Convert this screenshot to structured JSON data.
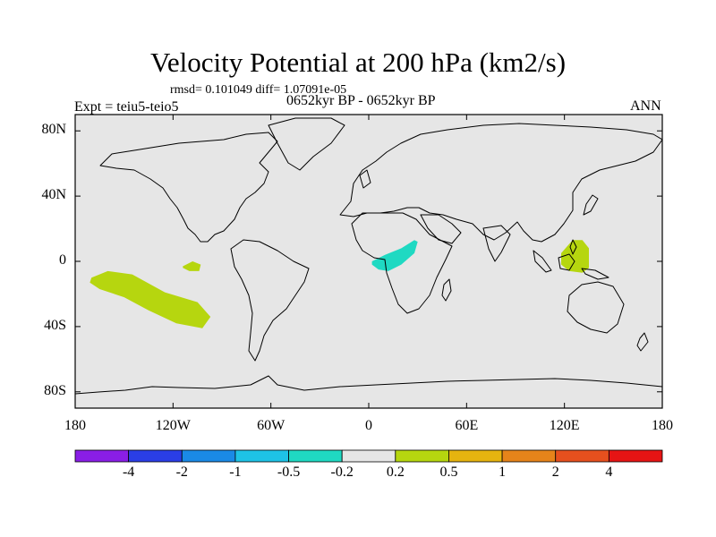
{
  "title": "Velocity Potential at 200 hPa (km2/s)",
  "stats": "rmsd= 0.101049 diff= 1.07091e-05",
  "left_label": "Expt = teiu5-teio5",
  "center_label": "0652kyr BP - 0652kyr BP",
  "right_label": "ANN",
  "chart_data": {
    "type": "contour_map",
    "projection": "cylindrical equidistant",
    "lon_range": [
      -180,
      180
    ],
    "lat_range": [
      -90,
      90
    ],
    "lat_ticks": [
      {
        "value": 80,
        "label": "80N"
      },
      {
        "value": 40,
        "label": "40N"
      },
      {
        "value": 0,
        "label": "0"
      },
      {
        "value": -40,
        "label": "40S"
      },
      {
        "value": -80,
        "label": "80S"
      }
    ],
    "lon_ticks": [
      {
        "value": -180,
        "label": "180"
      },
      {
        "value": -120,
        "label": "120W"
      },
      {
        "value": -60,
        "label": "60W"
      },
      {
        "value": 0,
        "label": "0"
      },
      {
        "value": 60,
        "label": "60E"
      },
      {
        "value": 120,
        "label": "120E"
      },
      {
        "value": 180,
        "label": "180"
      }
    ],
    "background_class_color": "#e6e6e6",
    "colorbar": {
      "levels": [
        "-4",
        "-2",
        "-1",
        "-0.5",
        "-0.2",
        "0.2",
        "0.5",
        "1",
        "2",
        "4"
      ],
      "colors": [
        "#8a1ee6",
        "#2a3ee6",
        "#1a8ae6",
        "#1ec3e6",
        "#1fd9c2",
        "#e6e6e6",
        "#b6d60f",
        "#e6b40f",
        "#e6841a",
        "#e6501e",
        "#e61414"
      ]
    },
    "shaded_regions": [
      {
        "name": "central Pacific 0.2 to 0.5",
        "color": "#b6d60f",
        "lon_lat": [
          [
            -170,
            -10
          ],
          [
            -160,
            -6
          ],
          [
            -145,
            -8
          ],
          [
            -125,
            -19
          ],
          [
            -105,
            -25
          ],
          [
            -97,
            -34
          ],
          [
            -102,
            -41
          ],
          [
            -118,
            -38
          ],
          [
            -135,
            -30
          ],
          [
            -150,
            -22
          ],
          [
            -165,
            -17
          ],
          [
            -171,
            -13
          ]
        ]
      },
      {
        "name": "eastern Pacific 0.2 to 0.5",
        "color": "#b6d60f",
        "lon_lat": [
          [
            -114,
            -3
          ],
          [
            -108,
            0
          ],
          [
            -103,
            -2
          ],
          [
            -104,
            -6
          ],
          [
            -110,
            -6
          ],
          [
            -114,
            -4
          ]
        ]
      },
      {
        "name": "equatorial Africa -0.5 to -0.2",
        "color": "#1fd9c2",
        "lon_lat": [
          [
            2,
            0
          ],
          [
            10,
            4
          ],
          [
            20,
            8
          ],
          [
            28,
            13
          ],
          [
            30,
            12
          ],
          [
            28,
            5
          ],
          [
            20,
            -2
          ],
          [
            12,
            -6
          ],
          [
            6,
            -5
          ],
          [
            2,
            -2
          ]
        ]
      },
      {
        "name": "Maritime Continent 0.2 to 0.5",
        "color": "#b6d60f",
        "lon_lat": [
          [
            118,
            5
          ],
          [
            125,
            13
          ],
          [
            131,
            13
          ],
          [
            135,
            8
          ],
          [
            135,
            -4
          ],
          [
            131,
            -7
          ],
          [
            123,
            -6
          ],
          [
            118,
            -2
          ]
        ]
      }
    ]
  }
}
